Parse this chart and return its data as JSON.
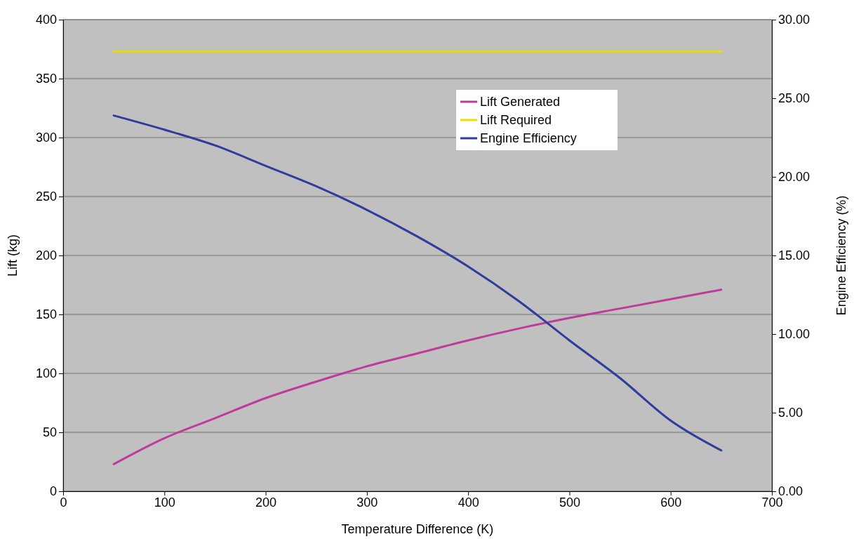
{
  "chart_data": {
    "type": "line",
    "xlabel": "Temperature Difference (K)",
    "ylabel": "Lift (kg)",
    "y2label": "Engine Efficiency (%)",
    "x": [
      50,
      100,
      150,
      200,
      250,
      300,
      350,
      400,
      450,
      500,
      550,
      600,
      650
    ],
    "series": [
      {
        "name": "Lift Generated",
        "color": "#c03a9c",
        "values": [
          23,
          45,
          62,
          79,
          93,
          106,
          117,
          128,
          138,
          147,
          155,
          163,
          171
        ]
      },
      {
        "name": "Lift Required",
        "color": "#e8e000",
        "values": [
          373,
          373,
          373,
          373,
          373,
          373,
          373,
          373,
          373,
          373,
          373,
          373,
          373
        ]
      },
      {
        "name": "Engine Efficiency",
        "color": "#2e3c9c",
        "axis": "y2",
        "values": [
          23.9,
          23.0,
          22.0,
          20.7,
          19.4,
          17.9,
          16.2,
          14.3,
          12.1,
          9.6,
          7.2,
          4.5,
          2.6
        ]
      }
    ],
    "xlim": [
      0,
      700
    ],
    "xticks": [
      0,
      100,
      200,
      300,
      400,
      500,
      600,
      700
    ],
    "ylim": [
      0,
      400
    ],
    "yticks": [
      0,
      50,
      100,
      150,
      200,
      250,
      300,
      350,
      400
    ],
    "y2lim": [
      0,
      30
    ],
    "y2ticks": [
      {
        "value": 0,
        "label": "0.00"
      },
      {
        "value": 5,
        "label": "5.00"
      },
      {
        "value": 10,
        "label": "10.00"
      },
      {
        "value": 15,
        "label": "15.00"
      },
      {
        "value": 20,
        "label": "20.00"
      },
      {
        "value": 25,
        "label": "25.00"
      },
      {
        "value": 30,
        "label": "30.00"
      }
    ],
    "grid": "y",
    "legend": "top right",
    "marker": "none",
    "line_style": "solid"
  }
}
